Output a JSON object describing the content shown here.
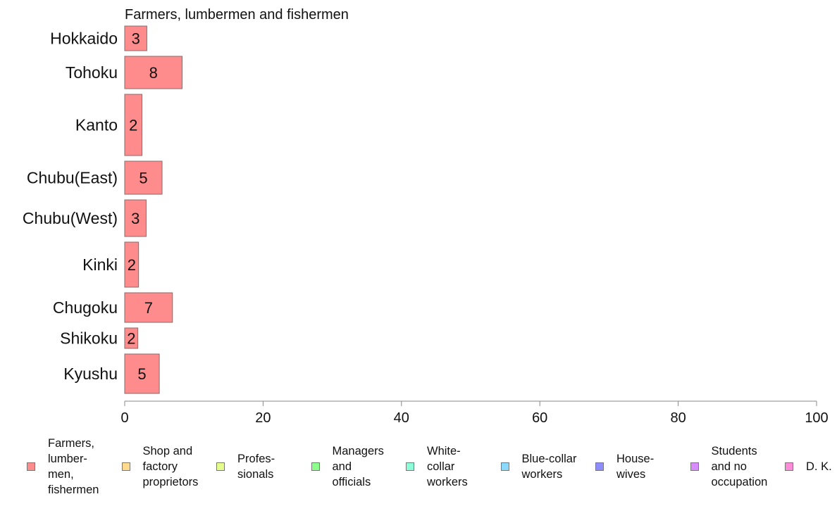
{
  "chart_data": {
    "type": "bar",
    "orientation": "horizontal",
    "title": "Farmers, lumbermen and fishermen",
    "categories": [
      "Hokkaido",
      "Tohoku",
      "Kanto",
      "Chubu(East)",
      "Chubu(West)",
      "Kinki",
      "Chugoku",
      "Shikoku",
      "Kyushu"
    ],
    "values": [
      3.2,
      8.3,
      2.5,
      5.4,
      3.1,
      2.0,
      6.9,
      1.9,
      5.0
    ],
    "value_labels": [
      "3",
      "8",
      "2",
      "5",
      "3",
      "2",
      "7",
      "2",
      "5"
    ],
    "xlim": [
      0,
      100
    ],
    "xticks": [
      "0",
      "20",
      "40",
      "60",
      "80",
      "100"
    ],
    "grid": false,
    "legend_position": "bottom",
    "bar_color": "#ff8c8c"
  },
  "legend": {
    "items": [
      {
        "label": "Farmers,\nlumber-\nmen,\nfishermen",
        "color": "#ff8c8c"
      },
      {
        "label": "Shop and\nfactory\nproprietors",
        "color": "#ffd98c"
      },
      {
        "label": "Profes-\nsionals",
        "color": "#e6ff8c"
      },
      {
        "label": "Managers\nand\nofficials",
        "color": "#8cff8c"
      },
      {
        "label": "White-\ncollar\nworkers",
        "color": "#8cffd9"
      },
      {
        "label": "Blue-collar\nworkers",
        "color": "#8cd9ff"
      },
      {
        "label": "House-\nwives",
        "color": "#8c8cff"
      },
      {
        "label": "Students\nand no\noccupation",
        "color": "#d98cff"
      },
      {
        "label": "D. K.",
        "color": "#ff8cd9"
      }
    ]
  }
}
